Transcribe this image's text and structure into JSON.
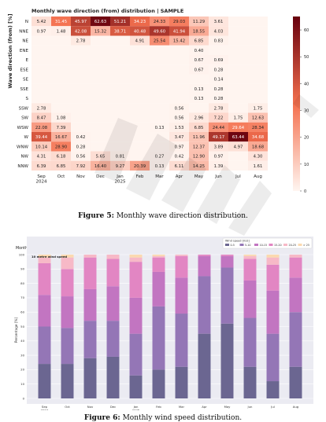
{
  "figures": [
    {
      "caption_label": "Figure 5:",
      "caption_text": "Monthly wave direction distribution."
    },
    {
      "caption_label": "Figure 6:",
      "caption_text": "Monthly wind speed distribution."
    }
  ],
  "chart_data": [
    {
      "type": "heatmap",
      "title": "Monthly wave direction (from) distribution | SAMPLE",
      "ylabel": "Wave direction (from) [%]",
      "xlabel": "",
      "x_tick_labels": [
        [
          "Sep",
          "2024"
        ],
        [
          "Oct"
        ],
        [
          "Nov"
        ],
        [
          "Dec"
        ],
        [
          "Jan",
          "2025"
        ],
        [
          "Feb"
        ],
        [
          "Mar"
        ],
        [
          "Apr"
        ],
        [
          "May"
        ],
        [
          "Jun"
        ],
        [
          "Jul"
        ],
        [
          "Aug"
        ]
      ],
      "rows": [
        "N",
        "NNE",
        "NE",
        "ENE",
        "E",
        "ESE",
        "SE",
        "SSE",
        "S",
        "SSW",
        "SW",
        "WSW",
        "W",
        "WNW",
        "NW",
        "NNW"
      ],
      "values": [
        [
          "5.42",
          "31.45",
          "45.97",
          "62.63",
          "51.21",
          "34.23",
          "24.33",
          "29.03",
          "11.29",
          "3.61",
          "",
          ""
        ],
        [
          "0.97",
          "1.48",
          "42.08",
          "15.32",
          "38.71",
          "40.48",
          "49.60",
          "41.94",
          "18.55",
          "4.03",
          "",
          ""
        ],
        [
          "",
          "",
          "2.78",
          "",
          "",
          "4.91",
          "25.54",
          "15.42",
          "6.85",
          "0.83",
          "",
          ""
        ],
        [
          "",
          "",
          "",
          "",
          "",
          "",
          "",
          "",
          "0.40",
          "",
          "",
          ""
        ],
        [
          "",
          "",
          "",
          "",
          "",
          "",
          "",
          "",
          "0.67",
          "0.69",
          "",
          ""
        ],
        [
          "",
          "",
          "",
          "",
          "",
          "",
          "",
          "",
          "0.67",
          "0.28",
          "",
          ""
        ],
        [
          "",
          "",
          "",
          "",
          "",
          "",
          "",
          "",
          "",
          "0.14",
          "",
          ""
        ],
        [
          "",
          "",
          "",
          "",
          "",
          "",
          "",
          "",
          "0.13",
          "0.28",
          "",
          ""
        ],
        [
          "",
          "",
          "",
          "",
          "",
          "",
          "",
          "",
          "0.13",
          "0.28",
          "",
          ""
        ],
        [
          "2.78",
          "",
          "",
          "",
          "",
          "",
          "",
          "0.56",
          "",
          "2.78",
          "",
          "1.75"
        ],
        [
          "8.47",
          "1.08",
          "",
          "",
          "",
          "",
          "",
          "0.56",
          "2.96",
          "7.22",
          "1.75",
          "12.63"
        ],
        [
          "22.08",
          "7.39",
          "",
          "",
          "",
          "",
          "0.13",
          "1.53",
          "6.85",
          "24.44",
          "29.64",
          "28.34"
        ],
        [
          "39.44",
          "16.67",
          "0.42",
          "",
          "",
          "",
          "",
          "3.47",
          "11.96",
          "49.17",
          "63.44",
          "34.68"
        ],
        [
          "10.14",
          "28.90",
          "0.28",
          "",
          "",
          "",
          "",
          "0.97",
          "12.37",
          "3.89",
          "4.97",
          "18.68"
        ],
        [
          "4.31",
          "6.18",
          "0.56",
          "5.65",
          "0.81",
          "",
          "0.27",
          "0.42",
          "12.90",
          "0.97",
          "",
          "4.30"
        ],
        [
          "6.39",
          "6.85",
          "7.92",
          "16.40",
          "9.27",
          "20.39",
          "0.13",
          "6.11",
          "14.25",
          "1.39",
          "",
          "1.61"
        ]
      ],
      "colorbar": {
        "min": 0,
        "max": 65,
        "ticks": [
          "0",
          "10",
          "20",
          "30",
          "40",
          "50",
          "60"
        ]
      },
      "colors": {
        "low": "#fff5f0",
        "mid": "#f4704e",
        "high": "#67000d"
      }
    },
    {
      "type": "bar",
      "stacked": true,
      "title": "Monthly wind speed distribution | SAMPLE",
      "ylabel": "Percentage [%]",
      "xlabel": "",
      "inset_label": "10 metre wind speed",
      "categories": [
        [
          "Sep",
          "2024"
        ],
        [
          "Oct"
        ],
        [
          "Nov"
        ],
        [
          "Dec"
        ],
        [
          "Jan",
          "2025"
        ],
        [
          "Feb"
        ],
        [
          "Mar"
        ],
        [
          "Apr"
        ],
        [
          "May"
        ],
        [
          "Jun"
        ],
        [
          "Jul"
        ],
        [
          "Aug"
        ]
      ],
      "yticks": [
        "0",
        "10",
        "20",
        "30",
        "40",
        "50",
        "60",
        "70",
        "80",
        "90",
        "100"
      ],
      "ylim": [
        0,
        100
      ],
      "legend_title": "Wind speed [m/s]",
      "legend_placement": "top-right",
      "series": [
        {
          "name": "0-5",
          "color": "#6b6691",
          "values": [
            24,
            24,
            28,
            29,
            16,
            20,
            22,
            45,
            52,
            22,
            12,
            22
          ]
        },
        {
          "name": "5-10",
          "color": "#9476b6",
          "values": [
            26,
            25,
            26,
            25,
            29,
            44,
            37,
            40,
            39,
            34,
            33,
            38
          ]
        },
        {
          "name": "10-15",
          "color": "#c275c1",
          "values": [
            22,
            22,
            22,
            24,
            25,
            24,
            25,
            14,
            8,
            26,
            30,
            24
          ]
        },
        {
          "name": "15-20",
          "color": "#e286c3",
          "values": [
            22,
            19,
            22,
            19,
            25,
            10,
            15,
            1,
            1,
            15,
            18,
            14
          ]
        },
        {
          "name": "20-25",
          "color": "#f7b9c7",
          "values": [
            4,
            8,
            2,
            3,
            3,
            1,
            1,
            0,
            0,
            2,
            5,
            2
          ]
        },
        {
          "name": "> 25",
          "color": "#fbd9b0",
          "values": [
            2,
            2,
            0,
            0,
            2,
            1,
            0,
            0,
            0,
            1,
            2,
            0
          ]
        }
      ]
    }
  ]
}
